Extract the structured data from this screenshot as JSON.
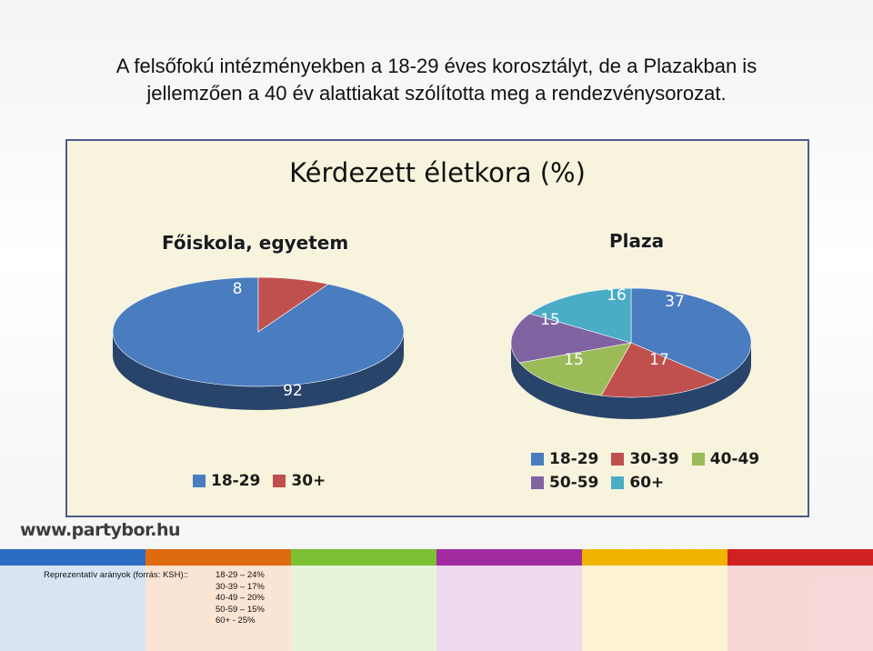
{
  "headline": {
    "line1": "A felsőfokú intézményekben a 18-29 éves korosztályt, de a Plazakban is",
    "line2": "jellemzően a 40 év alattiakat szólította meg a rendezvénysorozat."
  },
  "chart_title": "Kérdezett életkora (%)",
  "chart_data": [
    {
      "type": "pie",
      "title": "Főiskola, egyetem",
      "categories": [
        "18-29",
        "30+"
      ],
      "values": [
        92,
        8
      ],
      "colors": [
        "#4a7cc0",
        "#c0504d"
      ],
      "legend": "bottom"
    },
    {
      "type": "pie",
      "title": "Plaza",
      "categories": [
        "18-29",
        "30-39",
        "40-49",
        "50-59",
        "60+"
      ],
      "values": [
        37,
        17,
        15,
        15,
        16
      ],
      "colors": [
        "#4a7cc0",
        "#c0504d",
        "#9bbb59",
        "#8064a2",
        "#4bacc6"
      ],
      "legend": "bottom"
    }
  ],
  "site": "www.partybor.hu",
  "footer": {
    "source_label": "Reprezentatív arányok (forrás: KSH)::",
    "ksh": [
      "18-29 – 24%",
      "30-39 – 17%",
      "40-49 – 20%",
      "50-59 – 15%",
      "60+ - 25%"
    ],
    "band_colors": [
      "#2a6cc4",
      "#e06a10",
      "#7cc034",
      "#a02ca0",
      "#f0b400",
      "#d02020"
    ]
  }
}
